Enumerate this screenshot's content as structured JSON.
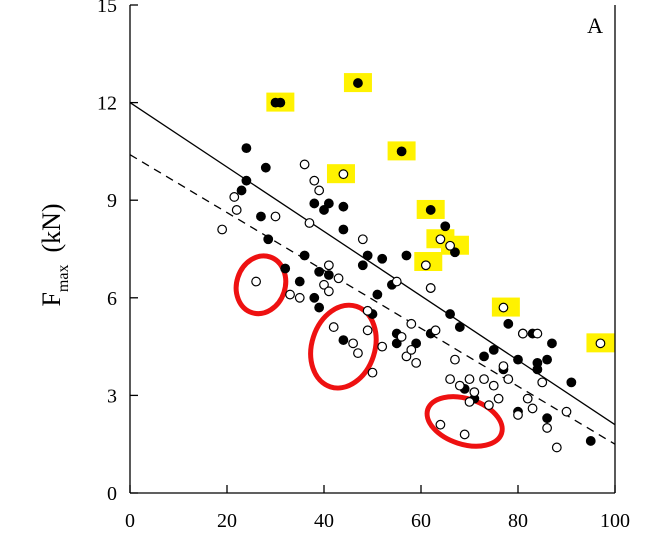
{
  "chart_data": {
    "type": "scatter",
    "panel_label": "A",
    "ylabel_main": "F",
    "ylabel_sub": "max",
    "ylabel_unit": "(kN)",
    "xlim": [
      0,
      100
    ],
    "ylim": [
      0,
      15
    ],
    "x_ticks": [
      0,
      20,
      40,
      60,
      80,
      100
    ],
    "y_ticks": [
      0,
      3,
      6,
      9,
      12,
      15
    ],
    "x_tick_labels": [
      "0",
      "20",
      "40",
      "60",
      "80",
      "100"
    ],
    "y_tick_labels": [
      "0",
      "3",
      "6",
      "9",
      "12",
      "15"
    ],
    "grid": false,
    "series": [
      {
        "marker": "filled-circle",
        "points": [
          [
            23,
            9.3
          ],
          [
            24,
            9.6
          ],
          [
            24,
            10.6
          ],
          [
            27,
            8.5
          ],
          [
            28,
            10.0
          ],
          [
            28.5,
            7.8
          ],
          [
            30,
            12.0
          ],
          [
            31,
            12.0
          ],
          [
            32,
            6.9
          ],
          [
            35,
            6.5
          ],
          [
            36,
            7.3
          ],
          [
            38,
            8.9
          ],
          [
            38,
            6.0
          ],
          [
            39,
            6.8
          ],
          [
            39,
            5.7
          ],
          [
            40,
            8.7
          ],
          [
            41,
            8.9
          ],
          [
            41,
            6.7
          ],
          [
            44,
            8.1
          ],
          [
            44,
            8.8
          ],
          [
            44,
            4.7
          ],
          [
            47,
            12.6
          ],
          [
            48,
            7.0
          ],
          [
            49,
            7.3
          ],
          [
            50,
            5.5
          ],
          [
            51,
            6.1
          ],
          [
            52,
            7.2
          ],
          [
            54,
            6.4
          ],
          [
            55,
            4.9
          ],
          [
            55,
            4.6
          ],
          [
            56,
            10.5
          ],
          [
            57,
            7.3
          ],
          [
            59,
            4.6
          ],
          [
            62,
            8.7
          ],
          [
            62,
            4.9
          ],
          [
            62,
            6.3
          ],
          [
            65,
            8.2
          ],
          [
            66,
            5.5
          ],
          [
            67,
            7.4
          ],
          [
            68,
            5.1
          ],
          [
            69,
            3.2
          ],
          [
            71,
            2.9
          ],
          [
            73,
            4.2
          ],
          [
            75,
            4.4
          ],
          [
            77,
            3.8
          ],
          [
            78,
            5.2
          ],
          [
            80,
            4.1
          ],
          [
            80,
            2.5
          ],
          [
            81,
            4.9
          ],
          [
            83,
            4.9
          ],
          [
            84,
            3.8
          ],
          [
            84,
            4.0
          ],
          [
            86,
            4.1
          ],
          [
            86,
            2.3
          ],
          [
            87,
            4.6
          ],
          [
            91,
            3.4
          ],
          [
            95,
            1.6
          ]
        ]
      },
      {
        "marker": "open-circle",
        "points": [
          [
            19,
            8.1
          ],
          [
            21.5,
            9.1
          ],
          [
            22,
            8.7
          ],
          [
            26,
            6.5
          ],
          [
            30,
            8.5
          ],
          [
            33,
            6.1
          ],
          [
            35,
            6.0
          ],
          [
            36,
            10.1
          ],
          [
            37,
            8.3
          ],
          [
            38,
            9.6
          ],
          [
            39,
            9.3
          ],
          [
            40,
            6.4
          ],
          [
            41,
            6.2
          ],
          [
            41,
            7.0
          ],
          [
            42,
            5.1
          ],
          [
            43,
            6.6
          ],
          [
            44,
            9.8
          ],
          [
            46,
            4.6
          ],
          [
            47,
            4.3
          ],
          [
            48,
            7.8
          ],
          [
            49,
            5.0
          ],
          [
            49,
            5.6
          ],
          [
            50,
            3.7
          ],
          [
            52,
            4.5
          ],
          [
            55,
            6.5
          ],
          [
            56,
            4.8
          ],
          [
            57,
            4.2
          ],
          [
            58,
            5.2
          ],
          [
            58,
            4.4
          ],
          [
            59,
            4.0
          ],
          [
            61,
            7.0
          ],
          [
            62,
            6.3
          ],
          [
            63,
            5.0
          ],
          [
            64,
            7.8
          ],
          [
            64,
            2.1
          ],
          [
            66,
            7.6
          ],
          [
            66,
            3.5
          ],
          [
            67,
            4.1
          ],
          [
            68,
            3.3
          ],
          [
            69,
            1.8
          ],
          [
            70,
            2.8
          ],
          [
            70,
            3.5
          ],
          [
            71,
            3.1
          ],
          [
            73,
            3.5
          ],
          [
            74,
            2.7
          ],
          [
            75,
            3.3
          ],
          [
            76,
            2.9
          ],
          [
            77,
            3.9
          ],
          [
            77,
            5.7
          ],
          [
            78,
            3.5
          ],
          [
            80,
            2.4
          ],
          [
            81,
            4.9
          ],
          [
            82,
            2.9
          ],
          [
            83,
            2.6
          ],
          [
            84,
            4.9
          ],
          [
            85,
            3.4
          ],
          [
            86,
            2.0
          ],
          [
            88,
            1.4
          ],
          [
            90,
            2.5
          ],
          [
            97,
            4.6
          ]
        ]
      }
    ],
    "lines": [
      {
        "style": "solid",
        "x": [
          0,
          100
        ],
        "y": [
          12.0,
          2.1
        ]
      },
      {
        "style": "dashed",
        "x": [
          0,
          100
        ],
        "y": [
          10.4,
          1.5
        ]
      }
    ],
    "highlights": {
      "yellow_boxes": [
        [
          31,
          12.0
        ],
        [
          47,
          12.6
        ],
        [
          43.5,
          9.8
        ],
        [
          56,
          10.5
        ],
        [
          62,
          8.7
        ],
        [
          64,
          7.8
        ],
        [
          67,
          7.6
        ],
        [
          61.5,
          7.1
        ],
        [
          77.5,
          5.7
        ],
        [
          97,
          4.6
        ]
      ],
      "red_loops": [
        {
          "center": [
            27,
            6.4
          ],
          "rx": 5,
          "ry": 0.9
        },
        {
          "center": [
            44,
            4.5
          ],
          "rx": 6.5,
          "ry": 1.3
        },
        {
          "center": [
            69,
            2.2
          ],
          "rx": 8,
          "ry": 0.7
        }
      ],
      "yellow_color": "#fff200",
      "red_color": "#ee1111"
    }
  }
}
